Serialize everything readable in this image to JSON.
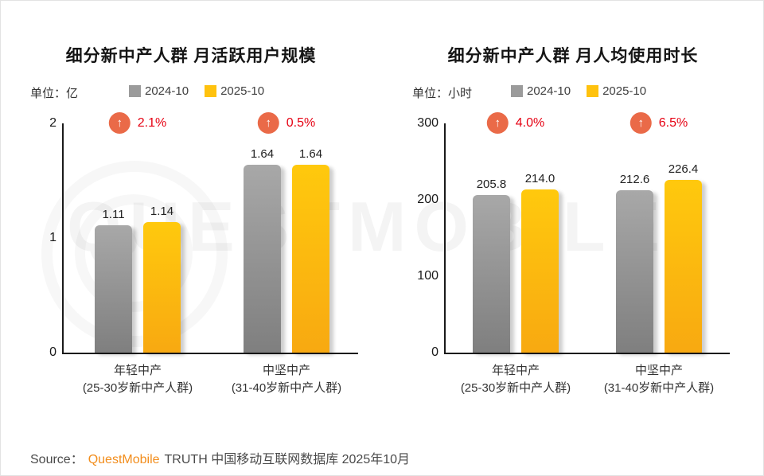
{
  "watermark": {
    "text": "QUESTMOBILE"
  },
  "chart_data": [
    {
      "type": "bar",
      "title": "细分新中产人群 月活跃用户规模",
      "unit": "单位：亿",
      "categories": [
        "年轻中产",
        "中坚中产"
      ],
      "category_subtitles": [
        "(25-30岁新中产人群)",
        "(31-40岁新中产人群)"
      ],
      "series": [
        {
          "name": "2024-10",
          "color": "#9B9B9B",
          "values": [
            1.11,
            1.64
          ],
          "labels": [
            "1.11",
            "1.64"
          ]
        },
        {
          "name": "2025-10",
          "color": "#FFC20E",
          "values": [
            1.14,
            1.64
          ],
          "labels": [
            "1.14",
            "1.64"
          ]
        }
      ],
      "growth": [
        "2.1%",
        "0.5%"
      ],
      "ylim": [
        0,
        2
      ],
      "yticks": [
        0,
        1,
        2
      ],
      "legend_position": "top",
      "grid": false
    },
    {
      "type": "bar",
      "title": "细分新中产人群 月人均使用时长",
      "unit": "单位：小时",
      "categories": [
        "年轻中产",
        "中坚中产"
      ],
      "category_subtitles": [
        "(25-30岁新中产人群)",
        "(31-40岁新中产人群)"
      ],
      "series": [
        {
          "name": "2024-10",
          "color": "#9B9B9B",
          "values": [
            205.8,
            212.6
          ],
          "labels": [
            "205.8",
            "212.6"
          ]
        },
        {
          "name": "2025-10",
          "color": "#FFC20E",
          "values": [
            214.0,
            226.4
          ],
          "labels": [
            "214.0",
            "226.4"
          ]
        }
      ],
      "growth": [
        "4.0%",
        "6.5%"
      ],
      "ylim": [
        0,
        300
      ],
      "yticks": [
        0,
        100,
        200,
        300
      ],
      "legend_position": "top",
      "grid": false
    }
  ],
  "colors": {
    "bar_gray": "#9B9B9B",
    "bar_yellow": "#FFC20E",
    "growth_red": "#E60012",
    "badge_orange": "#EA6A48",
    "brand_orange": "#F28D1C"
  },
  "icons": {
    "up_arrow": "↑"
  },
  "source": {
    "label": "Source：",
    "brand": "QuestMobile",
    "suffix": "TRUTH 中国移动互联网数据库 2025年10月"
  }
}
